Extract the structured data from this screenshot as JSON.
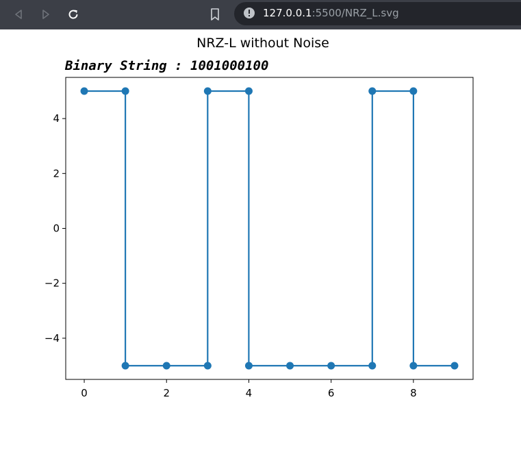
{
  "browser": {
    "url_host": "127.0.0.1",
    "url_path": ":5500/NRZ_L.svg",
    "icons": [
      "back-arrow-icon",
      "forward-arrow-icon",
      "reload-icon",
      "bookmark-icon",
      "site-info-icon"
    ]
  },
  "chart_data": {
    "type": "line",
    "title": "NRZ-L without Noise",
    "subtitle": "Binary String : 1001000100",
    "xlabel": "",
    "ylabel": "",
    "x": [
      0,
      1,
      1,
      2,
      3,
      3,
      4,
      4,
      5,
      6,
      7,
      7,
      8,
      8,
      9
    ],
    "y": [
      5,
      5,
      -5,
      -5,
      -5,
      5,
      5,
      -5,
      -5,
      -5,
      -5,
      5,
      5,
      -5,
      -5
    ],
    "markers_x": [
      0,
      1,
      1,
      2,
      3,
      3,
      4,
      4,
      5,
      6,
      7,
      7,
      8,
      8,
      9
    ],
    "markers_y": [
      5,
      5,
      -5,
      -5,
      -5,
      5,
      5,
      -5,
      -5,
      -5,
      -5,
      5,
      5,
      -5,
      -5
    ],
    "xlim": [
      -0.45,
      9.45
    ],
    "ylim": [
      -5.5,
      5.5
    ],
    "xticks": [
      0,
      2,
      4,
      6,
      8
    ],
    "xtick_labels": [
      "0",
      "2",
      "4",
      "6",
      "8"
    ],
    "yticks": [
      -4,
      -2,
      0,
      2,
      4
    ],
    "ytick_labels": [
      "−4",
      "−2",
      "0",
      "2",
      "4"
    ],
    "color": "#1f77b4",
    "grid": false
  }
}
